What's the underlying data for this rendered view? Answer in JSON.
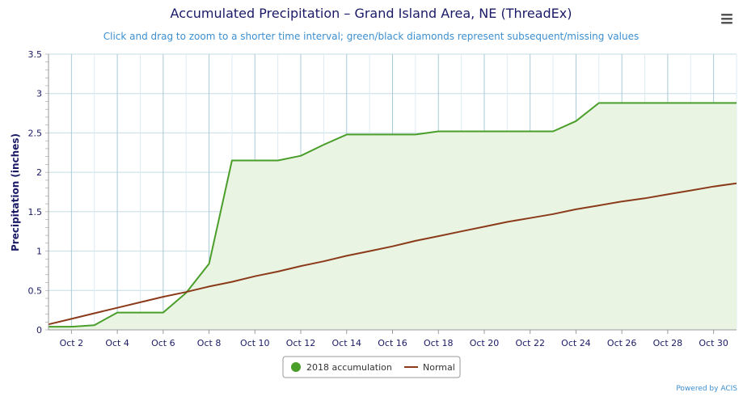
{
  "chart_data": {
    "type": "area",
    "title": "Accumulated Precipitation – Grand Island Area, NE (ThreadEx)",
    "subtitle": "Click and drag to zoom to a shorter time interval; green/black diamonds represent subsequent/missing values",
    "ylabel": "Precipitation (inches)",
    "xlabel": "",
    "ylim": [
      0,
      3.5
    ],
    "yticks": [
      "0",
      "0.5",
      "1",
      "1.5",
      "2",
      "2.5",
      "3",
      "3.5"
    ],
    "xticks": [
      "Oct 2",
      "Oct 4",
      "Oct 6",
      "Oct 8",
      "Oct 10",
      "Oct 12",
      "Oct 14",
      "Oct 16",
      "Oct 18",
      "Oct 20",
      "Oct 22",
      "Oct 24",
      "Oct 26",
      "Oct 28",
      "Oct 30"
    ],
    "x": [
      "Oct 1",
      "Oct 2",
      "Oct 3",
      "Oct 4",
      "Oct 5",
      "Oct 6",
      "Oct 7",
      "Oct 8",
      "Oct 9",
      "Oct 10",
      "Oct 11",
      "Oct 12",
      "Oct 13",
      "Oct 14",
      "Oct 15",
      "Oct 16",
      "Oct 17",
      "Oct 18",
      "Oct 19",
      "Oct 20",
      "Oct 21",
      "Oct 22",
      "Oct 23",
      "Oct 24",
      "Oct 25",
      "Oct 26",
      "Oct 27",
      "Oct 28",
      "Oct 29",
      "Oct 30",
      "Oct 31"
    ],
    "grid": true,
    "legend_position": "bottom",
    "series": [
      {
        "name": "2018 accumulation",
        "type": "area",
        "color": "#4a9e2a",
        "fill": "#e9f4e3",
        "values": [
          0.04,
          0.04,
          0.06,
          0.22,
          0.22,
          0.22,
          0.47,
          0.84,
          2.15,
          2.15,
          2.15,
          2.21,
          2.35,
          2.48,
          2.48,
          2.48,
          2.48,
          2.52,
          2.52,
          2.52,
          2.52,
          2.52,
          2.52,
          2.65,
          2.88,
          2.88,
          2.88,
          2.88,
          2.88,
          2.88,
          2.88
        ]
      },
      {
        "name": "Normal",
        "type": "line",
        "color": "#8b3a1a",
        "values": [
          0.07,
          0.14,
          0.21,
          0.28,
          0.35,
          0.42,
          0.48,
          0.55,
          0.61,
          0.68,
          0.74,
          0.81,
          0.87,
          0.94,
          1.0,
          1.06,
          1.13,
          1.19,
          1.25,
          1.31,
          1.37,
          1.42,
          1.47,
          1.53,
          1.58,
          1.63,
          1.67,
          1.72,
          1.77,
          1.82,
          1.86
        ]
      }
    ]
  },
  "credit": "Powered by ACIS",
  "menu_icon": "hamburger-menu-icon"
}
